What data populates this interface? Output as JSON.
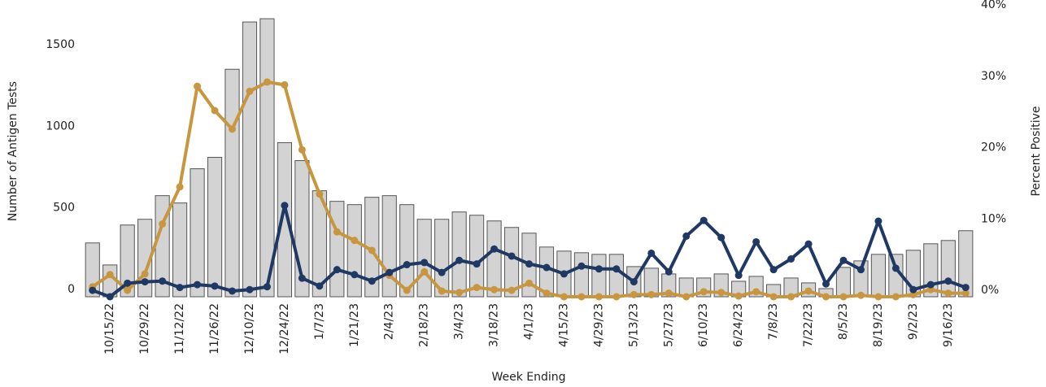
{
  "chart_data": {
    "type": "bar",
    "x_label": "Week Ending",
    "y_label": "Number of Antigen Tests",
    "y2_label": "Percent Positive",
    "categories": [
      null,
      "10/15/22",
      null,
      "10/29/22",
      null,
      "11/12/22",
      null,
      "11/26/22",
      null,
      "12/10/22",
      null,
      "12/24/22",
      null,
      "1/7/23",
      null,
      "1/21/23",
      null,
      "2/4/23",
      null,
      "2/18/23",
      null,
      "3/4/23",
      null,
      "3/18/23",
      null,
      "4/1/23",
      null,
      "4/15/23",
      null,
      "4/29/23",
      null,
      "5/13/23",
      null,
      "5/27/23",
      null,
      "6/10/23",
      null,
      "6/24/23",
      null,
      "7/8/23",
      null,
      "7/22/23",
      null,
      "8/5/23",
      null,
      "8/19/23",
      null,
      "9/2/23",
      null,
      "9/16/23",
      null
    ],
    "series": [
      {
        "type": "bar",
        "color": "#d3d3d3",
        "values": [
          330,
          195,
          440,
          475,
          620,
          575,
          785,
          855,
          1395,
          1685,
          1705,
          945,
          835,
          650,
          585,
          565,
          610,
          620,
          565,
          475,
          475,
          520,
          500,
          465,
          425,
          390,
          305,
          280,
          270,
          260,
          260,
          185,
          175,
          140,
          115,
          115,
          140,
          95,
          125,
          75,
          115,
          85,
          50,
          180,
          220,
          260,
          260,
          285,
          325,
          345,
          405
        ]
      },
      {
        "type": "line",
        "axis": "y2",
        "color": "#c8963e",
        "values": [
          1.4,
          3.1,
          0.9,
          3.2,
          10.2,
          15.4,
          29.5,
          26.1,
          23.5,
          28.8,
          30.1,
          29.7,
          20.6,
          14.4,
          9.1,
          7.9,
          6.5,
          3.0,
          0.9,
          3.5,
          0.8,
          0.6,
          1.3,
          1.0,
          0.9,
          1.9,
          0.5,
          0,
          0,
          0,
          0,
          0.3,
          0.3,
          0.5,
          0,
          0.7,
          0.6,
          0.1,
          0.7,
          0,
          0,
          0.8,
          0,
          0,
          0.2,
          0,
          0,
          0.3,
          1.0,
          0.5,
          0.5
        ]
      },
      {
        "type": "line",
        "axis": "y2",
        "color": "#1f3864",
        "values": [
          0.9,
          0,
          1.9,
          2.1,
          2.2,
          1.3,
          1.7,
          1.5,
          0.8,
          1.0,
          1.4,
          12.8,
          2.6,
          1.5,
          3.8,
          3.1,
          2.2,
          3.4,
          4.5,
          4.8,
          3.4,
          5.1,
          4.6,
          6.7,
          5.7,
          4.6,
          4.1,
          3.2,
          4.3,
          3.9,
          3.9,
          2.1,
          6.1,
          3.5,
          8.5,
          10.7,
          8.3,
          3.0,
          7.7,
          3.8,
          5.3,
          7.4,
          1.8,
          5.1,
          3.8,
          10.6,
          4.0,
          1.0,
          1.7,
          2.2,
          1.3
        ]
      }
    ],
    "ylim": [
      0,
      1770
    ],
    "yticks": [
      0,
      500,
      1000,
      1500
    ],
    "y2lim": [
      0,
      40.46
    ],
    "y2ticks": [
      {
        "value": 0,
        "label": "0%"
      },
      {
        "value": 10,
        "label": "10%"
      },
      {
        "value": 20,
        "label": "20%"
      },
      {
        "value": 30,
        "label": "30%"
      },
      {
        "value": 40,
        "label": "40%"
      }
    ],
    "grid": false
  }
}
